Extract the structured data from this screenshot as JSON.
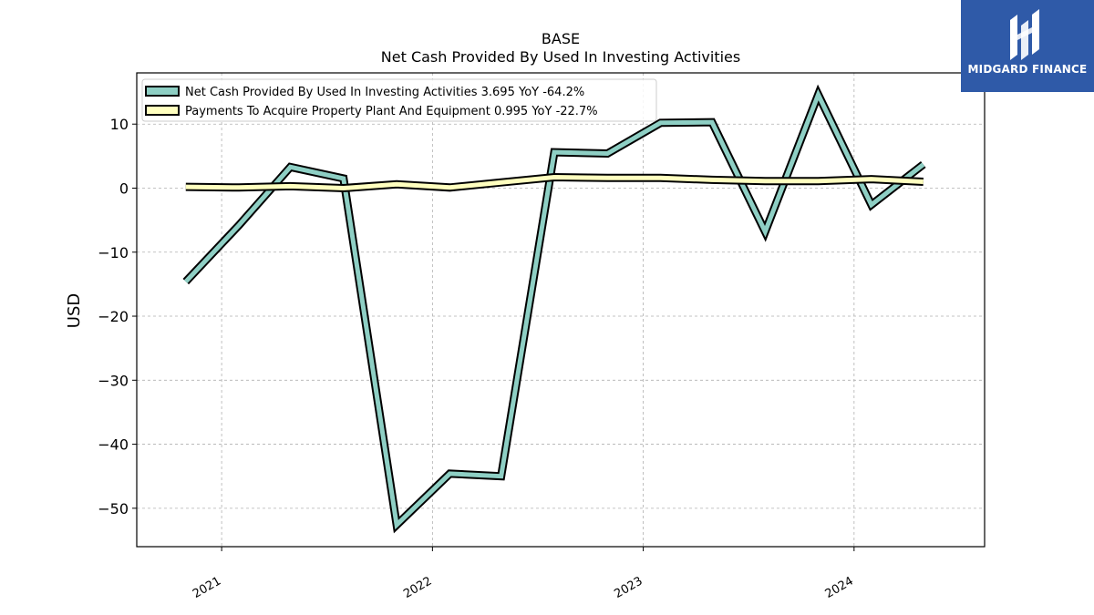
{
  "chart_data": {
    "type": "line",
    "title": "BASE",
    "subtitle": "Net Cash Provided By Used In Investing Activities",
    "xlabel": "",
    "ylabel": "USD",
    "x_ticks": [
      "2021",
      "2022",
      "2023",
      "2024"
    ],
    "y_ticks": [
      10,
      0,
      -10,
      -20,
      -30,
      -40,
      -50
    ],
    "ylim": [
      -56,
      18
    ],
    "xlim": [
      "2020-08-07",
      "2024-08-14"
    ],
    "grid": true,
    "legend_position": "top-left",
    "series": [
      {
        "name": "Net Cash Provided By Used In Investing Activities  3.695 YoY -64.2%",
        "color": "#8ecfc4",
        "x": [
          "2020-10-31",
          "2021-01-31",
          "2021-04-30",
          "2021-07-31",
          "2021-10-31",
          "2022-01-31",
          "2022-04-30",
          "2022-07-31",
          "2022-10-31",
          "2023-01-31",
          "2023-04-30",
          "2023-07-31",
          "2023-10-31",
          "2024-01-31",
          "2024-04-30"
        ],
        "values": [
          -14.6,
          -5.8,
          3.3,
          1.5,
          -52.6,
          -44.6,
          -45.0,
          5.6,
          5.4,
          10.2,
          10.3,
          -6.8,
          14.6,
          -2.6,
          3.7
        ]
      },
      {
        "name": "Payments To Acquire Property Plant And Equipment  0.995 YoY -22.7%",
        "color": "#ffffbf",
        "x": [
          "2020-10-31",
          "2021-01-31",
          "2021-04-30",
          "2021-07-31",
          "2021-10-31",
          "2022-01-31",
          "2022-04-30",
          "2022-07-31",
          "2022-10-31",
          "2023-01-31",
          "2023-04-30",
          "2023-07-31",
          "2023-10-31",
          "2024-01-31",
          "2024-04-30"
        ],
        "values": [
          0.2,
          0.1,
          0.3,
          0.0,
          0.6,
          0.1,
          0.9,
          1.7,
          1.6,
          1.6,
          1.3,
          1.1,
          1.1,
          1.4,
          1.0
        ]
      }
    ]
  },
  "logo": {
    "text": "MIDGARD FINANCE",
    "background": "#2f5aa8"
  }
}
